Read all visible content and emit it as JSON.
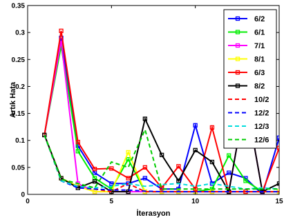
{
  "chart_data": {
    "type": "line",
    "title": "",
    "xlabel": "İterasyon",
    "ylabel": "Artık Hata",
    "xlim": [
      0,
      15
    ],
    "ylim": [
      0,
      0.35
    ],
    "xticks": [
      0,
      5,
      10,
      15
    ],
    "yticks": [
      0,
      0.05,
      0.1,
      0.15,
      0.2,
      0.25,
      0.3,
      0.35
    ],
    "ytick_labels": [
      "0",
      "0.05",
      "0.1",
      "0.15",
      "0.2",
      "0.25",
      "0.3",
      "0.35"
    ],
    "grid": false,
    "legend_position": "top-right",
    "x": [
      1,
      2,
      3,
      4,
      5,
      6,
      7,
      8,
      9,
      10,
      11,
      12,
      13,
      14,
      15
    ],
    "series": [
      {
        "name": "6/2",
        "color": "#0000ff",
        "style": "solid",
        "marker": "square",
        "values": [
          0.11,
          0.29,
          0.09,
          0.04,
          0.02,
          0.02,
          0.03,
          0.01,
          0.01,
          0.128,
          0.02,
          0.04,
          0.03,
          0.0,
          0.105
        ]
      },
      {
        "name": "6/1",
        "color": "#00ee00",
        "style": "solid",
        "marker": "square",
        "values": [
          0.11,
          0.275,
          0.08,
          0.03,
          0.01,
          0.065,
          0.005,
          0.005,
          0.005,
          0.005,
          0.01,
          0.072,
          0.025,
          0.005,
          0.005
        ]
      },
      {
        "name": "7/1",
        "color": "#ff00ff",
        "style": "solid",
        "marker": "square",
        "values": [
          0.11,
          0.285,
          0.02,
          0.005,
          0.005,
          0.005,
          0.005,
          0.005,
          0.005,
          0.005,
          0.005,
          0.005,
          0.18,
          0.005,
          0.005
        ]
      },
      {
        "name": "8/1",
        "color": "#ffff00",
        "style": "solid",
        "marker": "square",
        "values": [
          0.11,
          0.03,
          0.015,
          0.005,
          0.005,
          0.078,
          0.005,
          0.005,
          0.005,
          0.005,
          0.005,
          0.005,
          0.005,
          0.005,
          0.005
        ]
      },
      {
        "name": "6/3",
        "color": "#ff0000",
        "style": "solid",
        "marker": "square",
        "values": [
          0.11,
          0.303,
          0.097,
          0.047,
          0.048,
          0.03,
          0.05,
          0.012,
          0.052,
          0.01,
          0.124,
          0.005,
          0.005,
          0.005,
          0.086
        ]
      },
      {
        "name": "8/2",
        "color": "#000000",
        "style": "solid",
        "marker": "square",
        "values": [
          0.11,
          0.03,
          0.012,
          0.024,
          0.005,
          0.005,
          0.14,
          0.073,
          0.025,
          0.082,
          0.06,
          0.005,
          0.18,
          0.005,
          0.02
        ]
      },
      {
        "name": "10/2",
        "color": "#ff0000",
        "style": "dashed",
        "marker": "none",
        "values": [
          0.11,
          0.025,
          0.015,
          0.01,
          0.005,
          0.02,
          0.005,
          0.005,
          0.005,
          0.005,
          0.005,
          0.005,
          0.005,
          0.005,
          0.005
        ]
      },
      {
        "name": "12/2",
        "color": "#0000ff",
        "style": "dashed",
        "marker": "none",
        "values": [
          0.11,
          0.025,
          0.012,
          0.01,
          0.008,
          0.008,
          0.006,
          0.005,
          0.005,
          0.005,
          0.005,
          0.005,
          0.005,
          0.005,
          0.005
        ]
      },
      {
        "name": "12/3",
        "color": "#00dddd",
        "style": "dashed",
        "marker": "none",
        "values": [
          0.11,
          0.025,
          0.015,
          0.012,
          0.015,
          0.02,
          0.015,
          0.018,
          0.02,
          0.015,
          0.02,
          0.015,
          0.01,
          0.012,
          0.01
        ]
      },
      {
        "name": "12/6",
        "color": "#00cc00",
        "style": "dashed",
        "marker": "none",
        "values": [
          0.11,
          0.028,
          0.02,
          0.012,
          0.06,
          0.05,
          0.12,
          0.01,
          0.01,
          0.01,
          0.01,
          0.01,
          0.01,
          0.01,
          0.01
        ]
      }
    ]
  }
}
